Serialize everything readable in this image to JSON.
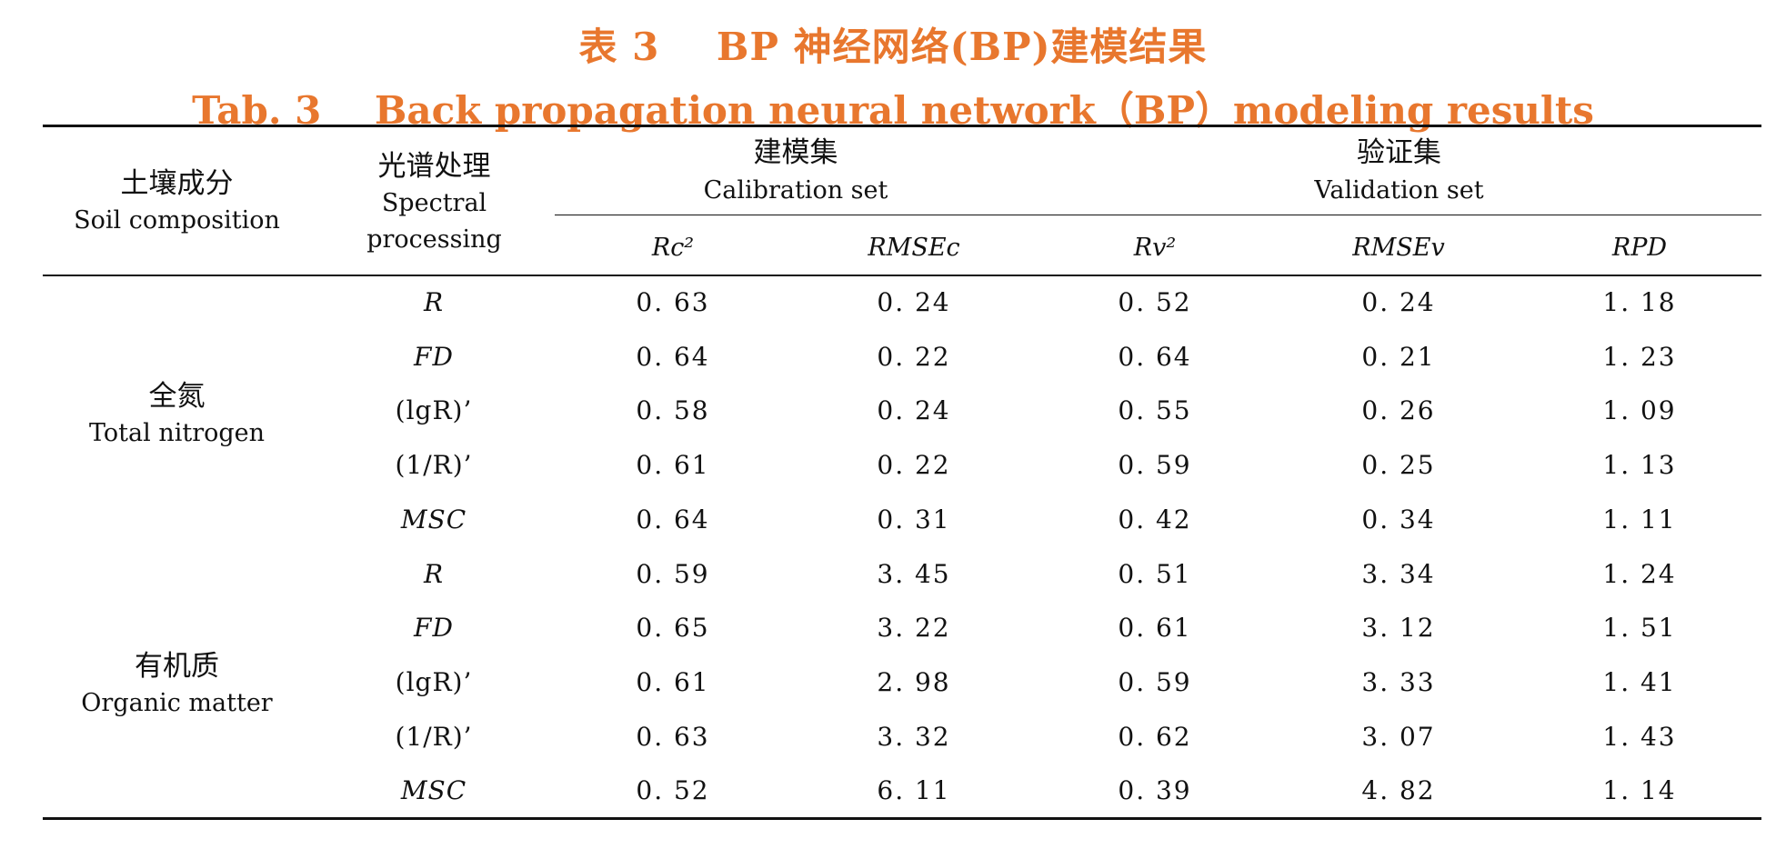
{
  "table": {
    "title_cn_label": "表 3",
    "title_cn_text": "BP 神经网络(BP)建模结果",
    "title_en_label": "Tab. 3",
    "title_en_text": "Back propagation neural network（BP）modeling results",
    "headers": {
      "soil_cn": "土壤成分",
      "soil_en": "Soil composition",
      "spectral_cn": "光谱处理",
      "spectral_en_1": "Spectral",
      "spectral_en_2": "processing",
      "calibration_cn": "建模集",
      "calibration_en": "Calibration set",
      "validation_cn": "验证集",
      "validation_en": "Validation set",
      "rc2": "Rc²",
      "rmsec": "RMSEc",
      "rv2": "Rv²",
      "rmsev": "RMSEv",
      "rpd": "RPD"
    },
    "groups": [
      {
        "cn": "全氮",
        "en": "Total nitrogen"
      },
      {
        "cn": "有机质",
        "en": "Organic matter"
      }
    ],
    "rows": [
      {
        "method": "R",
        "rc2": "0. 63",
        "rmsec": "0. 24",
        "rv2": "0. 52",
        "rmsev": "0. 24",
        "rpd": "1. 18"
      },
      {
        "method": "FD",
        "rc2": "0. 64",
        "rmsec": "0. 22",
        "rv2": "0. 64",
        "rmsev": "0. 21",
        "rpd": "1. 23"
      },
      {
        "method": "(lgR)’",
        "rc2": "0. 58",
        "rmsec": "0. 24",
        "rv2": "0. 55",
        "rmsev": "0. 26",
        "rpd": "1. 09"
      },
      {
        "method": "(1/R)’",
        "rc2": "0. 61",
        "rmsec": "0. 22",
        "rv2": "0. 59",
        "rmsev": "0. 25",
        "rpd": "1. 13"
      },
      {
        "method": "MSC",
        "rc2": "0. 64",
        "rmsec": "0. 31",
        "rv2": "0. 42",
        "rmsev": "0. 34",
        "rpd": "1. 11"
      },
      {
        "method": "R",
        "rc2": "0. 59",
        "rmsec": "3. 45",
        "rv2": "0. 51",
        "rmsev": "3. 34",
        "rpd": "1. 24"
      },
      {
        "method": "FD",
        "rc2": "0. 65",
        "rmsec": "3. 22",
        "rv2": "0. 61",
        "rmsev": "3. 12",
        "rpd": "1. 51"
      },
      {
        "method": "(lgR)’",
        "rc2": "0. 61",
        "rmsec": "2. 98",
        "rv2": "0. 59",
        "rmsev": "3. 33",
        "rpd": "1. 41"
      },
      {
        "method": "(1/R)’",
        "rc2": "0. 63",
        "rmsec": "3. 32",
        "rv2": "0. 62",
        "rmsev": "3. 07",
        "rpd": "1. 43"
      },
      {
        "method": "MSC",
        "rc2": "0. 52",
        "rmsec": "6. 11",
        "rv2": "0. 39",
        "rmsev": "4. 82",
        "rpd": "1. 14"
      }
    ]
  }
}
